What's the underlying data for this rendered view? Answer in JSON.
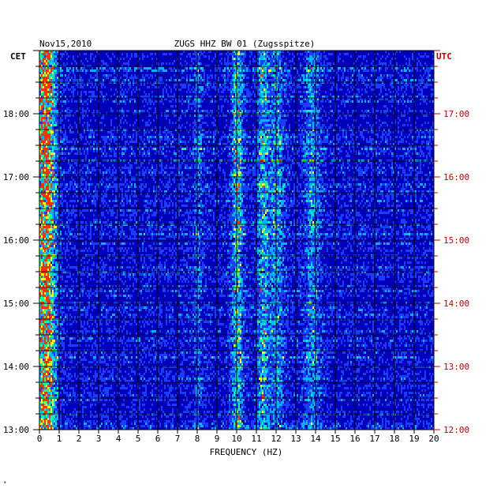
{
  "chart_data": {
    "type": "heatmap",
    "date": "Nov15,2010",
    "title": "ZUGS HHZ BW 01 (Zugsspitze)",
    "xlabel": "FREQUENCY (HZ)",
    "left_axis_label": "CET",
    "right_axis_label": "UTC",
    "xlim": [
      0,
      20
    ],
    "x_ticks": [
      "0",
      "1",
      "2",
      "3",
      "4",
      "5",
      "6",
      "7",
      "8",
      "9",
      "10",
      "11",
      "12",
      "13",
      "14",
      "15",
      "16",
      "17",
      "18",
      "19",
      "20"
    ],
    "time_range_cet_hours": [
      13,
      19
    ],
    "cet_ticks": [
      {
        "hour": 18,
        "label": "18:00"
      },
      {
        "hour": 17,
        "label": "17:00"
      },
      {
        "hour": 16,
        "label": "16:00"
      },
      {
        "hour": 15,
        "label": "15:00"
      },
      {
        "hour": 14,
        "label": "14:00"
      },
      {
        "hour": 13,
        "label": "13:00"
      }
    ],
    "utc_ticks": [
      {
        "hour": 18,
        "label": "17:00"
      },
      {
        "hour": 17,
        "label": "16:00"
      },
      {
        "hour": 16,
        "label": "15:00"
      },
      {
        "hour": 15,
        "label": "14:00"
      },
      {
        "hour": 14,
        "label": "13:00"
      },
      {
        "hour": 13,
        "label": "12:00"
      }
    ],
    "grid": true,
    "colors": {
      "background": "#0000b8",
      "low": "#1a3cff",
      "mid": "#00b4ff",
      "high": "#00ffa0",
      "peak": "#ffff00",
      "max": "#ff3000",
      "utc_label": "#cc0000",
      "axis": "#000000"
    },
    "energy_features": [
      {
        "freq_hz": 0.3,
        "intensity": 0.9,
        "width_hz": 0.5
      },
      {
        "freq_hz": 10.0,
        "intensity": 0.55,
        "width_hz": 0.3
      },
      {
        "freq_hz": 11.3,
        "intensity": 0.45,
        "width_hz": 0.3
      },
      {
        "freq_hz": 12.0,
        "intensity": 0.35,
        "width_hz": 0.4
      },
      {
        "freq_hz": 13.8,
        "intensity": 0.35,
        "width_hz": 0.4
      },
      {
        "freq_hz": 8.0,
        "intensity": 0.25,
        "width_hz": 0.2
      }
    ]
  }
}
